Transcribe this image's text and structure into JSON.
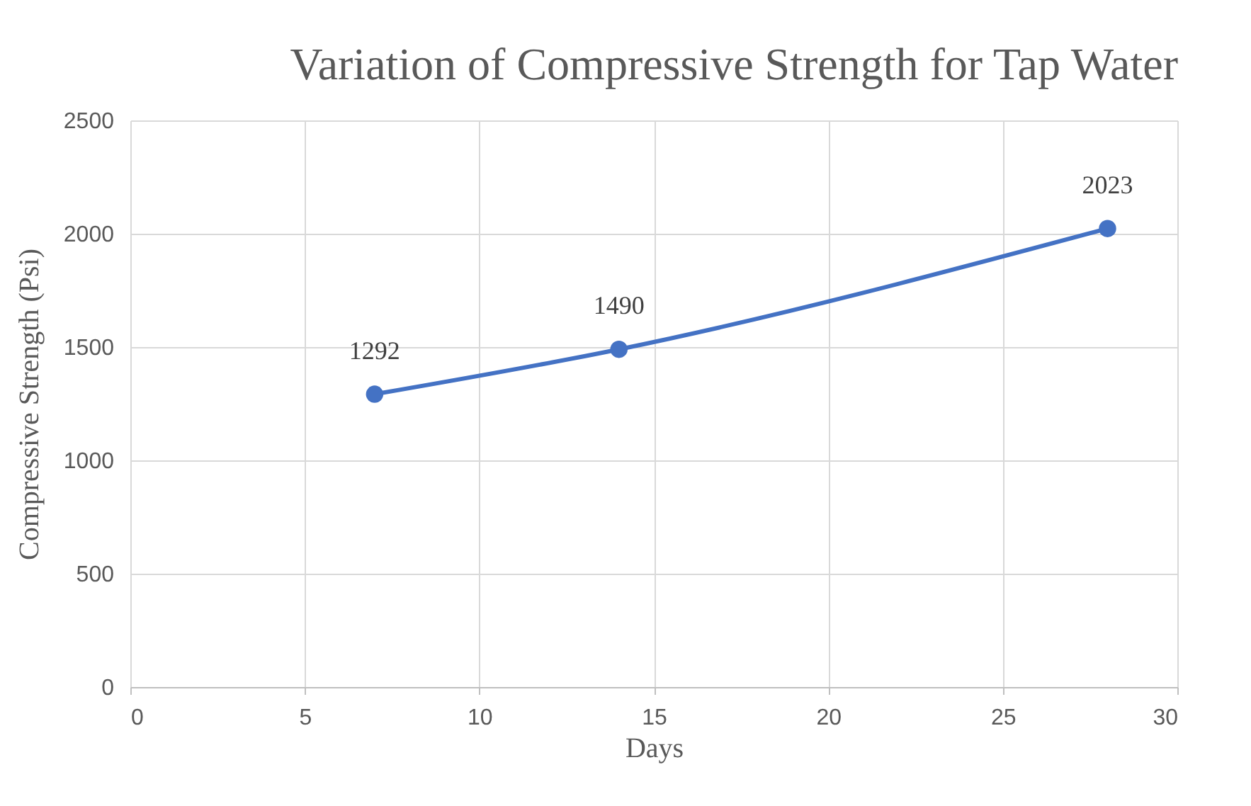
{
  "chart_data": {
    "type": "line",
    "title": "Variation of Compressive Strength for Tap Water",
    "xlabel": "Days",
    "ylabel": "Compressive Strength (Psi)",
    "x": [
      7,
      14,
      28
    ],
    "series": [
      {
        "color": "#4472c4",
        "values": [
          1292,
          1490,
          2023
        ]
      }
    ],
    "xlim": [
      0,
      30
    ],
    "xticks": [
      0,
      5,
      10,
      15,
      20,
      25,
      30
    ],
    "ylim": [
      0,
      2500
    ],
    "yticks": [
      0,
      500,
      1000,
      1500,
      2000,
      2500
    ],
    "grid": true,
    "marker": "circle",
    "line_style": "solid",
    "data_labels": true
  }
}
